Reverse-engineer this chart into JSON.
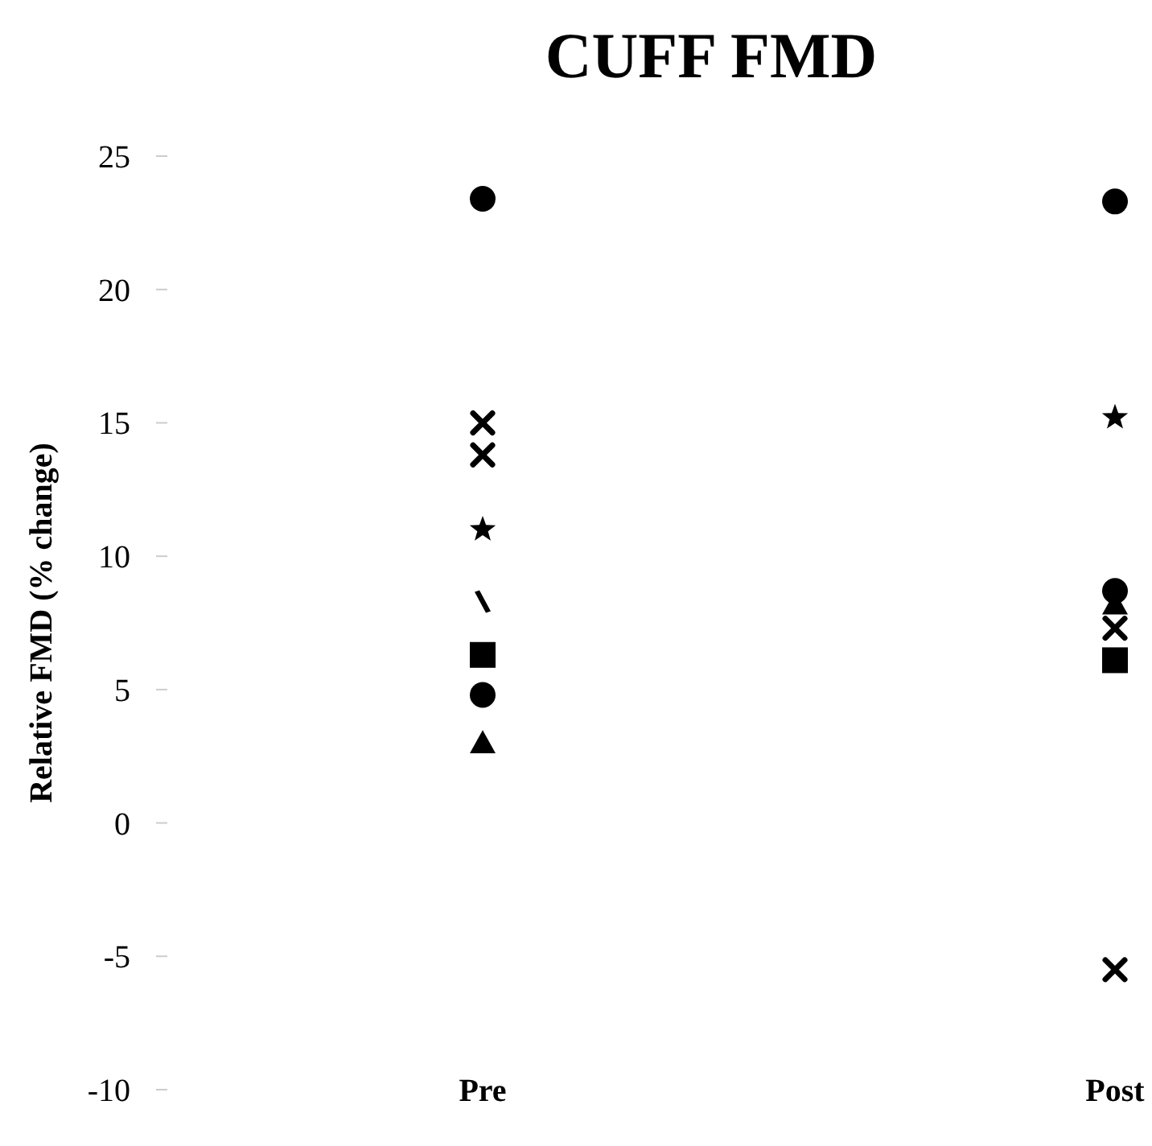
{
  "chart_data": {
    "type": "scatter",
    "title": "CUFF FMD",
    "ylabel": "Relative FMD (% change)",
    "categories": [
      "Pre",
      "Post"
    ],
    "ylim": [
      -10,
      25
    ],
    "yticks": [
      -10,
      -5,
      0,
      5,
      10,
      15,
      20,
      25
    ],
    "grid": false,
    "series": [
      {
        "color": "#000000",
        "marker": "circle",
        "values": [
          23.4,
          23.3
        ]
      },
      {
        "color": "#000000",
        "marker": "cross",
        "values": [
          15.0,
          -5.5
        ]
      },
      {
        "color": "#000000",
        "marker": "cross",
        "values": [
          13.8,
          7.3
        ]
      },
      {
        "color": "#000000",
        "marker": "star",
        "values": [
          11.0,
          15.2
        ]
      },
      {
        "color": "#000000",
        "marker": "diamond",
        "values": [
          8.3,
          null
        ]
      },
      {
        "color": "#000000",
        "marker": "square",
        "values": [
          6.3,
          6.1
        ]
      },
      {
        "color": "#000000",
        "marker": "circle",
        "values": [
          4.8,
          8.7
        ]
      },
      {
        "color": "#000000",
        "marker": "triangle",
        "values": [
          3.0,
          8.2
        ]
      }
    ]
  }
}
